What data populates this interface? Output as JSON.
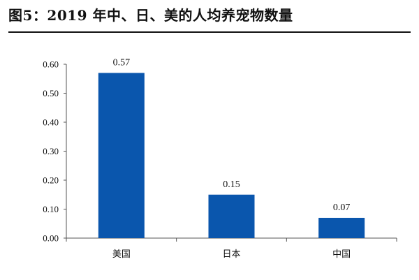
{
  "chart_data": {
    "type": "bar",
    "title": "图5：2019 年中、日、美的人均养宠物数量",
    "categories": [
      "美国",
      "日本",
      "中国"
    ],
    "values": [
      0.57,
      0.15,
      0.07
    ],
    "value_labels": [
      "0.57",
      "0.15",
      "0.07"
    ],
    "ylim": [
      0,
      0.6
    ],
    "yticks": [
      0.0,
      0.1,
      0.2,
      0.3,
      0.4,
      0.5,
      0.6
    ],
    "ytick_labels": [
      "0.00",
      "0.10",
      "0.20",
      "0.30",
      "0.40",
      "0.50",
      "0.60"
    ],
    "xlabel": "",
    "ylabel": "",
    "grid": false,
    "bar_color": "#0a56ad"
  }
}
